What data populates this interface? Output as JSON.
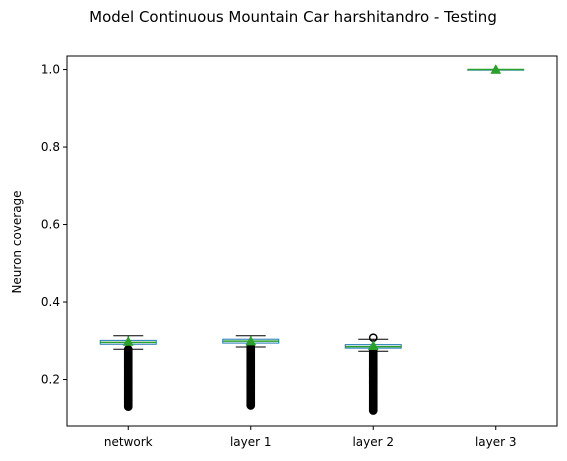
{
  "chart_data": {
    "type": "box",
    "title": "Model Continuous Mountain Car harshitandro - Testing",
    "xlabel": "",
    "ylabel": "Neuron coverage",
    "categories": [
      "network",
      "layer 1",
      "layer 2",
      "layer 3"
    ],
    "ylim": [
      0.08,
      1.035
    ],
    "yticks": [
      0.2,
      0.4,
      0.6,
      0.8,
      1.0
    ],
    "ytick_labels": [
      "0.2",
      "0.4",
      "0.6",
      "0.8",
      "1.0"
    ],
    "boxes": [
      {
        "label": "network",
        "whisker_low": 0.278,
        "q1": 0.291,
        "median": 0.296,
        "q3": 0.301,
        "whisker_high": 0.313,
        "mean": 0.298,
        "outlier_range": [
          0.13,
          0.278
        ]
      },
      {
        "label": "layer 1",
        "whisker_low": 0.284,
        "q1": 0.294,
        "median": 0.299,
        "q3": 0.304,
        "whisker_high": 0.313,
        "mean": 0.299,
        "outlier_range": [
          0.133,
          0.284
        ]
      },
      {
        "label": "layer 2",
        "whisker_low": 0.273,
        "q1": 0.281,
        "median": 0.285,
        "q3": 0.29,
        "whisker_high": 0.304,
        "mean": 0.287,
        "outlier_range": [
          0.12,
          0.273
        ],
        "outliers_high": [
          0.308
        ]
      },
      {
        "label": "layer 3",
        "whisker_low": 1.0,
        "q1": 1.0,
        "median": 1.0,
        "q3": 1.0,
        "whisker_high": 1.0,
        "mean": 1.0,
        "outlier_range": null
      }
    ],
    "colors": {
      "box": "#1f77b4",
      "median": "#2ca02c",
      "mean": "#2ca02c",
      "whisker": "#000000",
      "outlier": "#000000"
    },
    "grid": false,
    "legend": "none"
  }
}
